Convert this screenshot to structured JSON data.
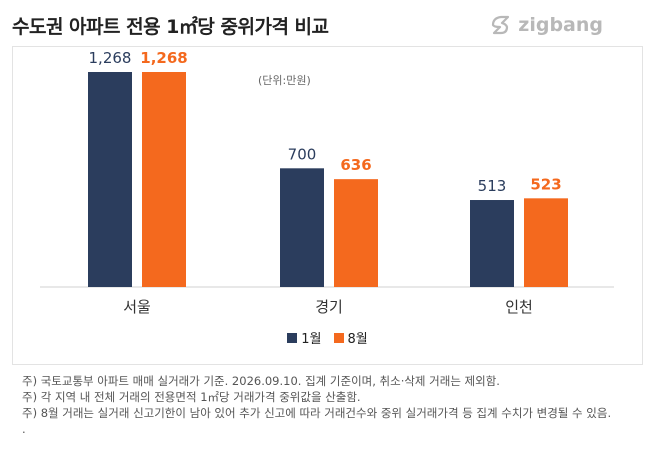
{
  "header": {
    "title": "수도권 아파트 전용 1㎡당 중위가격 비교",
    "logo_text": "zigbang"
  },
  "unit_label": "(단위:만원)",
  "colors": {
    "jan": "#2b3d5d",
    "aug": "#f4691e",
    "value_jan": "#2b3d5d",
    "value_aug": "#f4691e"
  },
  "chart_data": {
    "type": "bar",
    "categories": [
      "서울",
      "경기",
      "인천"
    ],
    "series": [
      {
        "name": "1월",
        "values": [
          1268,
          700,
          513
        ]
      },
      {
        "name": "8월",
        "values": [
          1268,
          636,
          523
        ]
      }
    ],
    "value_labels": [
      [
        "1,268",
        "700",
        "513"
      ],
      [
        "1,268",
        "636",
        "523"
      ]
    ],
    "ylim": [
      0,
      1268
    ],
    "legend": "bottom-center",
    "grid": false
  },
  "notes": [
    "주) 국토교통부 아파트 매매 실거래가 기준. 2026.09.10. 집계 기준이며, 취소·삭제 거래는 제외함.",
    "주) 각 지역 내 전체 거래의 전용면적 1㎡당 거래가격 중위값을 산출함.",
    "주) 8월 거래는 실거래 신고기한이 남아 있어 추가 신고에 따라 거래건수와 중위 실거래가격 등 집계 수치가 변경될 수 있음.",
    "."
  ]
}
